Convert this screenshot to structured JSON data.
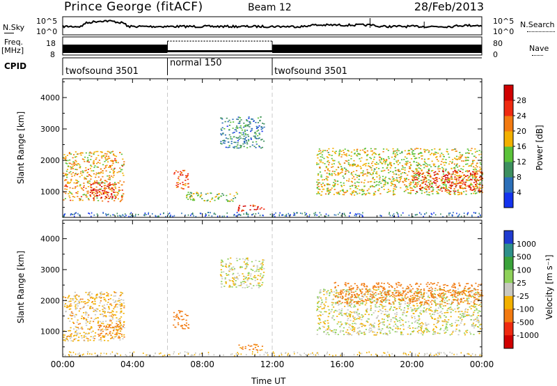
{
  "header": {
    "station": "Prince George (fitACF)",
    "beam": "Beam 12",
    "date": "28/Feb/2013"
  },
  "noise_panel": {
    "left_label": "N.Sky",
    "left_ticks": [
      "10^5",
      "10^0"
    ],
    "right_ticks": [
      "10^5",
      "10^0"
    ],
    "right_label": "N.Search"
  },
  "freq_panel": {
    "left_label_1": "Freq.",
    "left_label_2": "[MHz]",
    "left_ticks": [
      "18",
      "8"
    ],
    "right_ticks": [
      "80",
      "0"
    ],
    "right_label": "Nave"
  },
  "cpid": {
    "label": "CPID",
    "segments": [
      {
        "name": "twofsound 3501",
        "start_h": 0,
        "end_h": 6
      },
      {
        "name": "normal 150",
        "start_h": 6,
        "end_h": 12
      },
      {
        "name": "twofsound 3501",
        "start_h": 12,
        "end_h": 24
      }
    ]
  },
  "power_panel": {
    "ylabel": "Slant Range [km]",
    "yticks": [
      1000,
      2000,
      3000,
      4000
    ],
    "cbar_label": "Power [dB]",
    "cbar_ticks": [
      "4",
      "8",
      "12",
      "16",
      "20",
      "24",
      "28"
    ],
    "cbar_colors": [
      "#1433ee",
      "#2c6fb8",
      "#3d8f5f",
      "#5bc23a",
      "#f2b000",
      "#f27a10",
      "#ef2a10",
      "#d00000"
    ]
  },
  "velocity_panel": {
    "ylabel": "Slant Range [km]",
    "yticks": [
      1000,
      2000,
      3000,
      4000
    ],
    "cbar_label": "Velocity [m s⁻¹]",
    "cbar_ticks": [
      "1000",
      "500",
      "100",
      "25",
      "-25",
      "-100",
      "-500",
      "-1000"
    ],
    "cbar_colors": [
      "#1f3bd0",
      "#2e8f8a",
      "#3aa23a",
      "#8fd15a",
      "#c8c8c0",
      "#f2b000",
      "#f27a10",
      "#ef2a10",
      "#d00000"
    ]
  },
  "xaxis": {
    "label": "Time UT",
    "ticks": [
      "00:00",
      "04:00",
      "08:00",
      "12:00",
      "16:00",
      "20:00",
      "00:00"
    ]
  },
  "chart_data": {
    "type": "heatmap",
    "title": "Prince George (fitACF)  Beam 12  28/Feb/2013",
    "xlabel": "Time UT",
    "ylabel": "Slant Range [km]",
    "xlim": [
      0,
      24
    ],
    "ylim": [
      180,
      4600
    ],
    "power_clim_db": [
      0,
      30
    ],
    "velocity_clim": [
      -1000,
      1000
    ],
    "power_regions": [
      {
        "t0": 0.0,
        "t1": 3.5,
        "r0": 700,
        "r1": 2300,
        "power": 18
      },
      {
        "t0": 1.5,
        "t1": 3.0,
        "r0": 800,
        "r1": 1300,
        "power": 27
      },
      {
        "t0": 6.3,
        "t1": 7.2,
        "r0": 1100,
        "r1": 1700,
        "power": 22
      },
      {
        "t0": 7.0,
        "t1": 10.0,
        "r0": 700,
        "r1": 1000,
        "power": 14
      },
      {
        "t0": 9.0,
        "t1": 11.5,
        "r0": 2400,
        "r1": 3400,
        "power": 8
      },
      {
        "t0": 10.0,
        "t1": 11.5,
        "r0": 400,
        "r1": 600,
        "power": 26
      },
      {
        "t0": 14.5,
        "t1": 24.0,
        "r0": 900,
        "r1": 2400,
        "power": 16
      },
      {
        "t0": 20.0,
        "t1": 24.0,
        "r0": 1000,
        "r1": 1700,
        "power": 25
      }
    ],
    "velocity_regions": [
      {
        "t0": 0.0,
        "t1": 3.5,
        "r0": 700,
        "r1": 2300,
        "velocity": -50
      },
      {
        "t0": 2.0,
        "t1": 3.5,
        "r0": 800,
        "r1": 1300,
        "velocity": -150
      },
      {
        "t0": 6.3,
        "t1": 7.2,
        "r0": 1100,
        "r1": 1700,
        "velocity": -400
      },
      {
        "t0": 9.0,
        "t1": 11.5,
        "r0": 2400,
        "r1": 3400,
        "velocity": 0
      },
      {
        "t0": 10.0,
        "t1": 11.5,
        "r0": 400,
        "r1": 600,
        "velocity": -150
      },
      {
        "t0": 14.5,
        "t1": 24.0,
        "r0": 900,
        "r1": 2400,
        "velocity": 0
      },
      {
        "t0": 15.5,
        "t1": 24.0,
        "r0": 1900,
        "r1": 2600,
        "velocity": -200
      }
    ]
  }
}
